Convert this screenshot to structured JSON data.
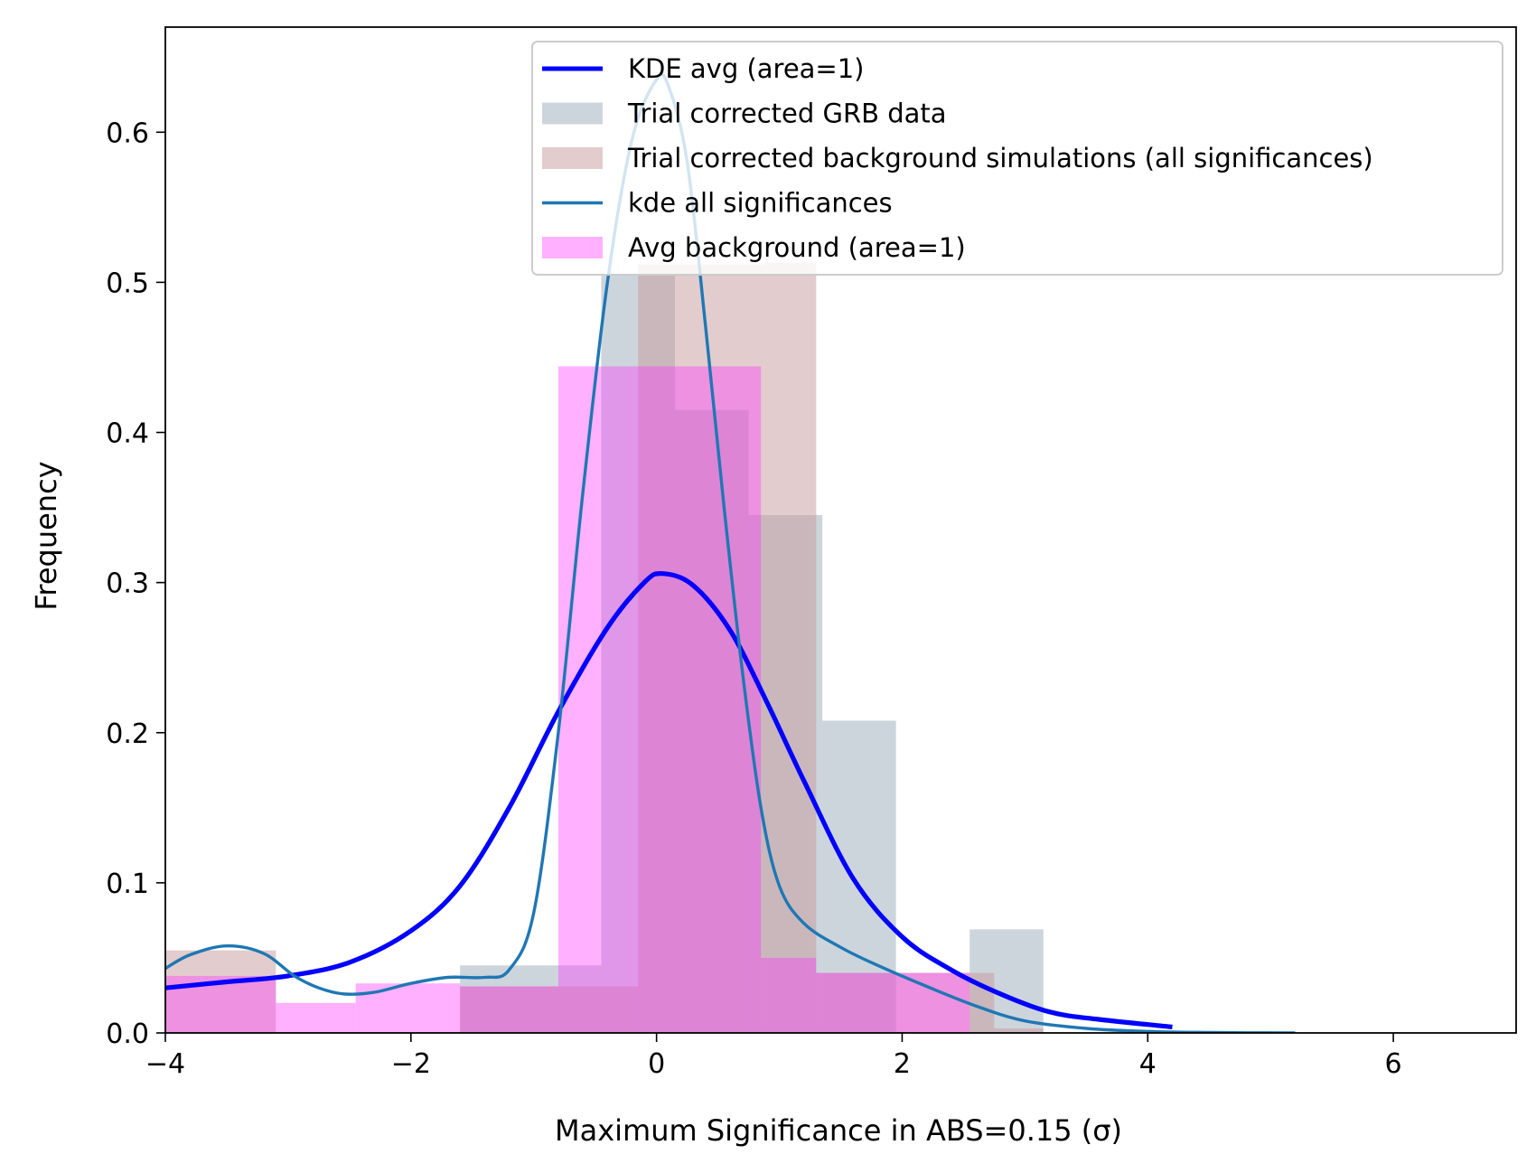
{
  "chart_data": {
    "type": "histogram",
    "xlabel": "Maximum Significance in ABS=0.15 (σ)",
    "ylabel": "Frequency",
    "xlim": [
      -4,
      7
    ],
    "ylim": [
      0,
      0.67
    ],
    "xticks": [
      -4,
      -2,
      0,
      2,
      4,
      6
    ],
    "xtick_labels": [
      "−4",
      "−2",
      "0",
      "2",
      "4",
      "6"
    ],
    "yticks": [
      0.0,
      0.1,
      0.2,
      0.3,
      0.4,
      0.5,
      0.6
    ],
    "ytick_labels": [
      "0.0",
      "0.1",
      "0.2",
      "0.3",
      "0.4",
      "0.5",
      "0.6"
    ],
    "legend_position": "upper-right",
    "histograms": [
      {
        "name": "Trial corrected GRB data",
        "color": "#a4b3bf",
        "opacity": 0.55,
        "bins": [
          {
            "x0": -4.0,
            "x1": -1.6,
            "y": 0.0
          },
          {
            "x0": -1.6,
            "x1": -0.8,
            "y": 0.045
          },
          {
            "x0": -0.8,
            "x1": -0.45,
            "y": 0.045
          },
          {
            "x0": -0.45,
            "x1": 0.15,
            "y": 0.505
          },
          {
            "x0": 0.15,
            "x1": 0.75,
            "y": 0.415
          },
          {
            "x0": 0.75,
            "x1": 1.35,
            "y": 0.345
          },
          {
            "x0": 1.35,
            "x1": 1.95,
            "y": 0.208
          },
          {
            "x0": 1.95,
            "x1": 2.55,
            "y": 0.0
          },
          {
            "x0": 2.55,
            "x1": 3.15,
            "y": 0.069
          }
        ]
      },
      {
        "name": "Trial corrected background simulations (all significances)",
        "color": "#c69a9c",
        "opacity": 0.5,
        "bins": [
          {
            "x0": -4.0,
            "x1": -3.1,
            "y": 0.055
          },
          {
            "x0": -3.1,
            "x1": -1.6,
            "y": 0.0
          },
          {
            "x0": -1.6,
            "x1": -0.15,
            "y": 0.031
          },
          {
            "x0": -0.15,
            "x1": 0.88,
            "y": 0.512
          },
          {
            "x0": 0.88,
            "x1": 1.3,
            "y": 0.513
          },
          {
            "x0": 1.3,
            "x1": 2.75,
            "y": 0.04
          },
          {
            "x0": 2.75,
            "x1": 3.15,
            "y": 0.003
          }
        ]
      },
      {
        "name": "Avg background (area=1)",
        "color": "#ff33ff",
        "opacity": 0.38,
        "bins": [
          {
            "x0": -4.0,
            "x1": -3.1,
            "y": 0.038
          },
          {
            "x0": -3.1,
            "x1": -2.45,
            "y": 0.02
          },
          {
            "x0": -2.45,
            "x1": -1.6,
            "y": 0.033
          },
          {
            "x0": -1.6,
            "x1": -0.8,
            "y": 0.031
          },
          {
            "x0": -0.8,
            "x1": 0.85,
            "y": 0.444
          },
          {
            "x0": 0.85,
            "x1": 1.3,
            "y": 0.05
          },
          {
            "x0": 1.3,
            "x1": 2.55,
            "y": 0.04
          }
        ]
      }
    ],
    "lines": [
      {
        "name": "KDE avg (area=1)",
        "color": "#0000ff",
        "width": 2.6,
        "x": [
          -4.0,
          -3.5,
          -3.0,
          -2.5,
          -2.0,
          -1.6,
          -1.2,
          -0.8,
          -0.4,
          -0.1,
          0.05,
          0.3,
          0.6,
          0.9,
          1.2,
          1.6,
          2.0,
          2.4,
          2.8,
          3.2,
          3.6,
          4.2
        ],
        "y": [
          0.03,
          0.034,
          0.038,
          0.047,
          0.068,
          0.098,
          0.15,
          0.214,
          0.27,
          0.3,
          0.306,
          0.298,
          0.268,
          0.22,
          0.168,
          0.103,
          0.064,
          0.042,
          0.026,
          0.014,
          0.009,
          0.004
        ]
      },
      {
        "name": "kde all significances",
        "color": "#1f77b4",
        "width": 1.7,
        "x": [
          -4.0,
          -3.8,
          -3.5,
          -3.2,
          -2.95,
          -2.75,
          -2.55,
          -2.3,
          -2.0,
          -1.7,
          -1.4,
          -1.2,
          -1.0,
          -0.8,
          -0.6,
          -0.4,
          -0.2,
          0.0,
          0.1,
          0.25,
          0.4,
          0.55,
          0.7,
          0.85,
          1.0,
          1.2,
          1.5,
          1.8,
          2.2,
          2.6,
          3.0,
          3.5,
          4.0,
          4.5,
          5.2
        ],
        "y": [
          0.043,
          0.052,
          0.058,
          0.053,
          0.038,
          0.03,
          0.026,
          0.027,
          0.033,
          0.037,
          0.037,
          0.042,
          0.08,
          0.2,
          0.36,
          0.5,
          0.595,
          0.635,
          0.63,
          0.58,
          0.47,
          0.35,
          0.24,
          0.15,
          0.098,
          0.073,
          0.057,
          0.045,
          0.031,
          0.018,
          0.008,
          0.003,
          0.001,
          0.0003,
          0.0
        ]
      }
    ],
    "legend": [
      {
        "label": "KDE avg (area=1)",
        "kind": "line",
        "color": "#0000ff"
      },
      {
        "label": "Trial corrected GRB data",
        "kind": "patch",
        "color": "#a4b3bf",
        "opacity": 0.55
      },
      {
        "label": "Trial corrected background simulations (all significances)",
        "kind": "patch",
        "color": "#c69a9c",
        "opacity": 0.5
      },
      {
        "label": "kde all significances",
        "kind": "line",
        "color": "#1f77b4"
      },
      {
        "label": "Avg background (area=1)",
        "kind": "patch",
        "color": "#ff33ff",
        "opacity": 0.38
      }
    ]
  }
}
